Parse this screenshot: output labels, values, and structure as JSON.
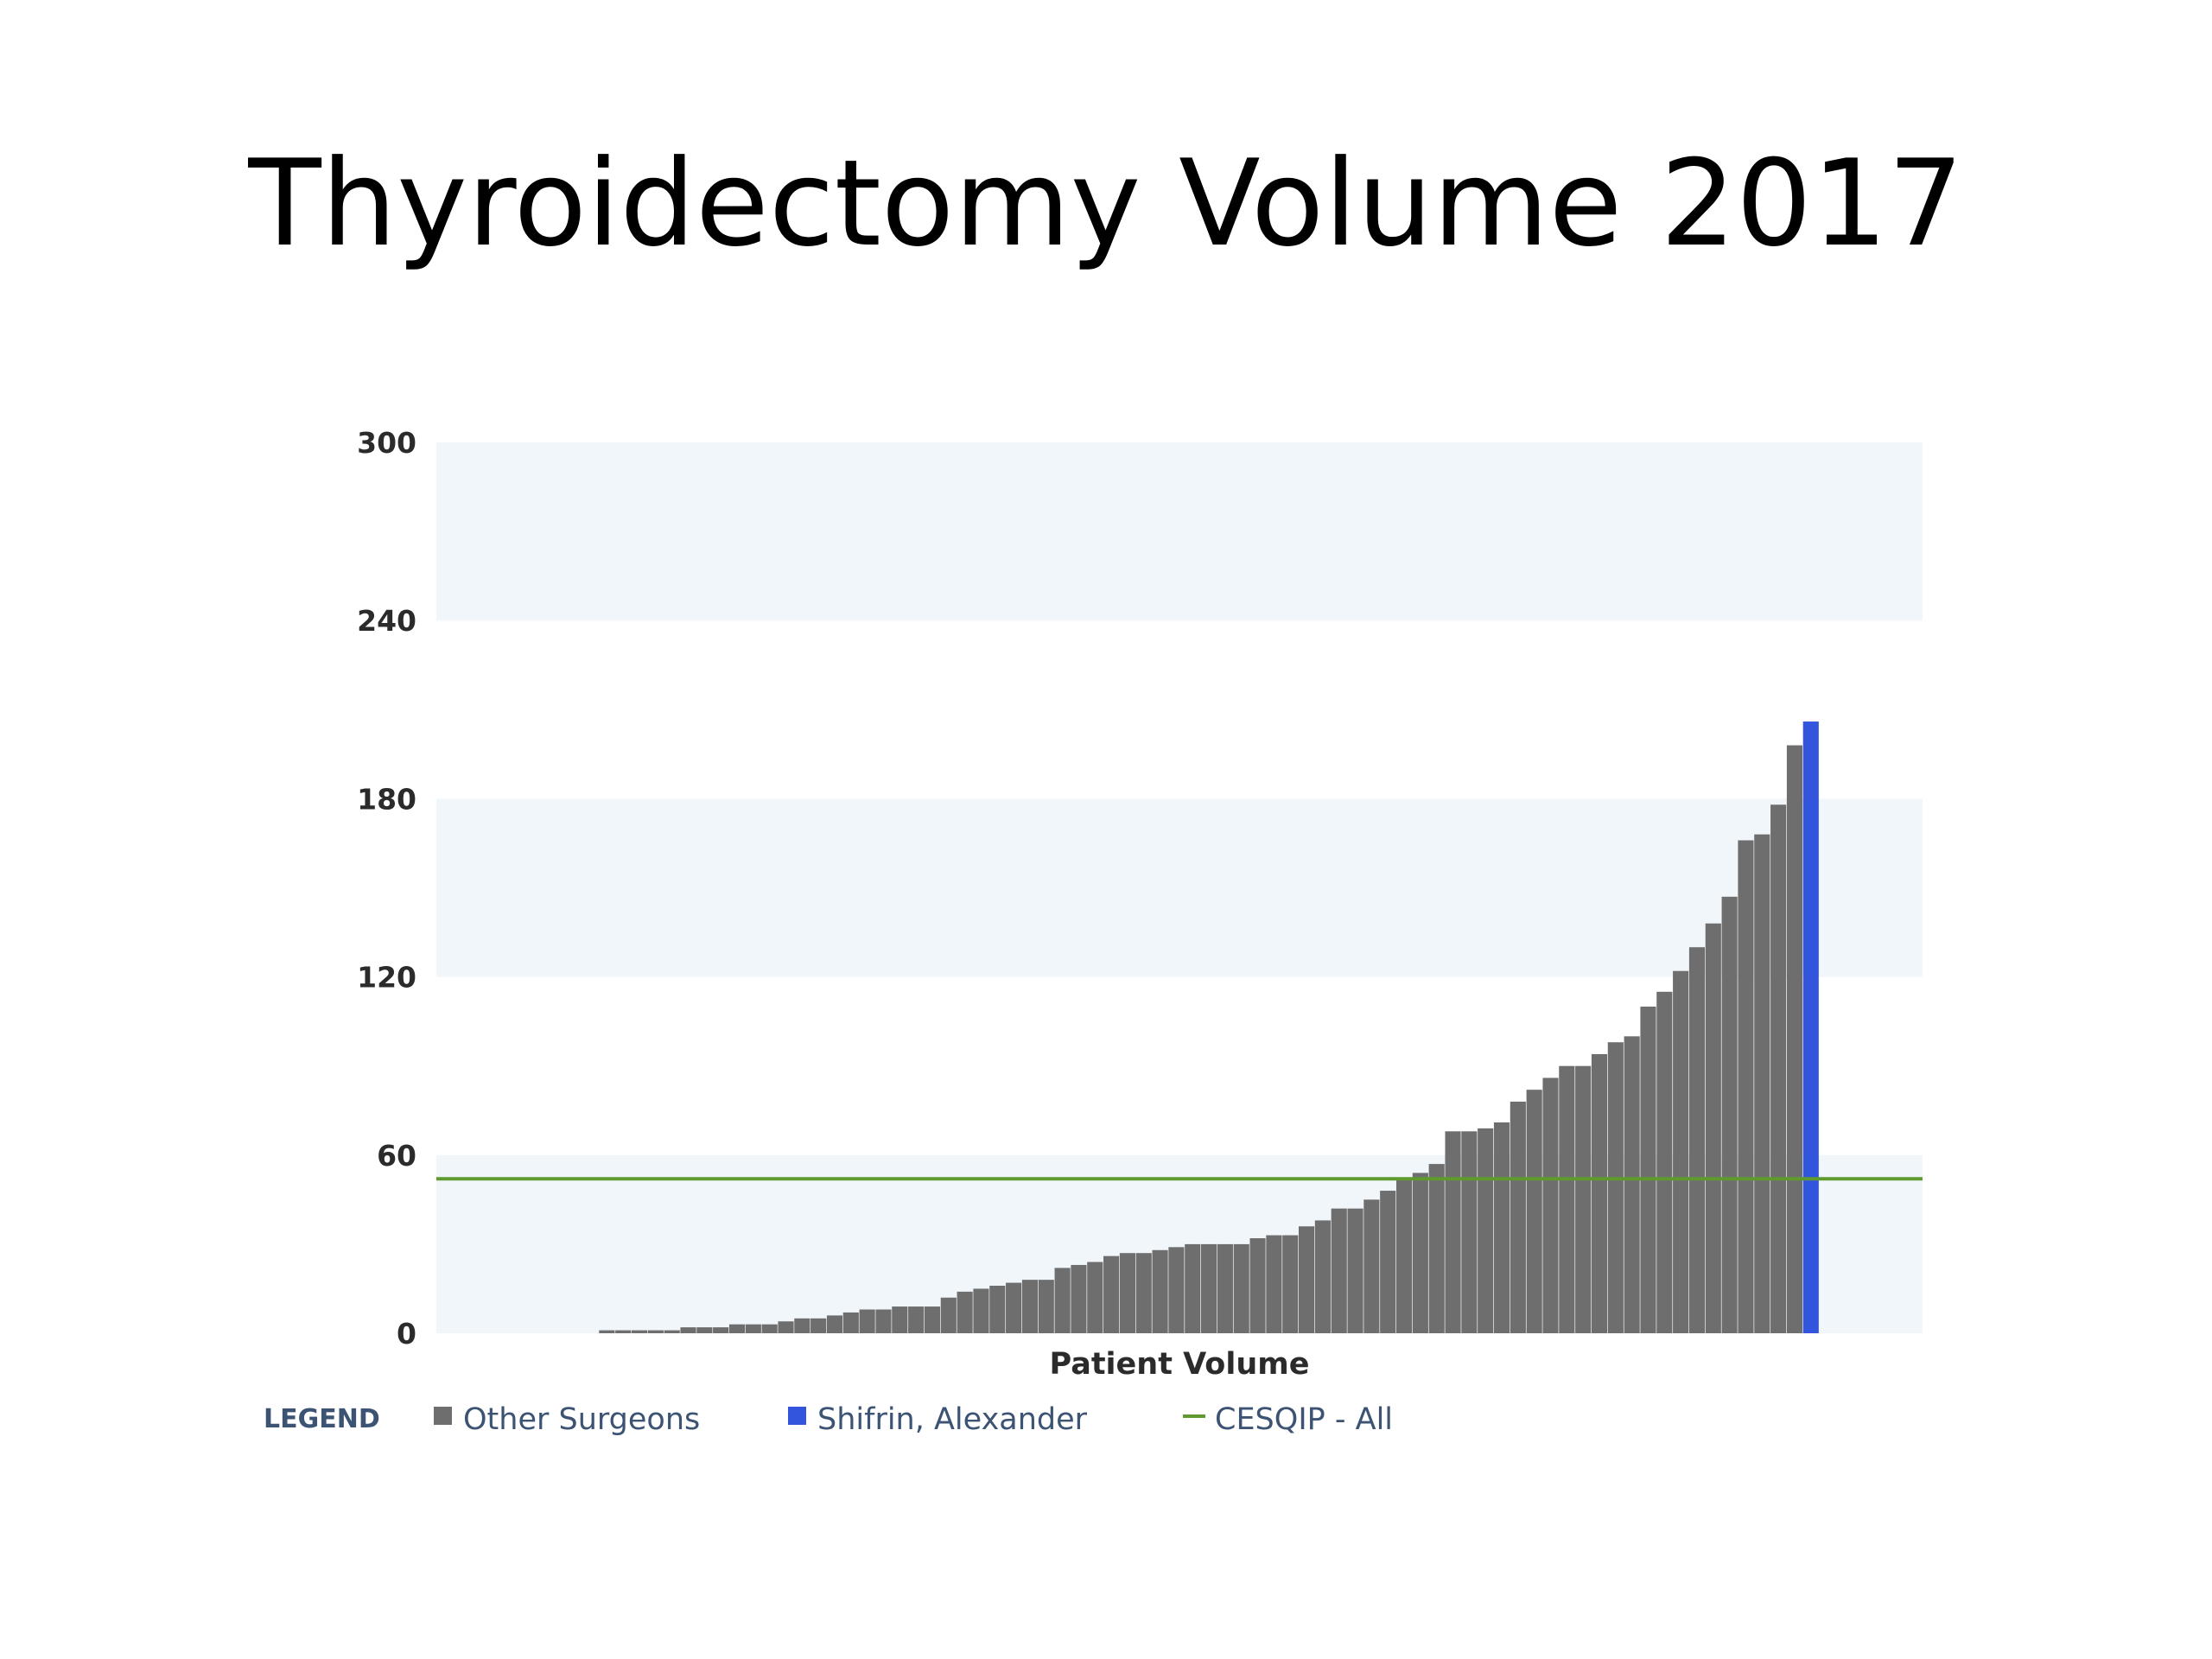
{
  "slide": {
    "title": "Thyroidectomy Volume 2017"
  },
  "colors": {
    "other": "#6e6e6e",
    "highlight": "#3355dd",
    "reference": "#5f9a2e",
    "band": "#f1f6fa",
    "text": "#2b2b2b",
    "legend_text": "#3c5373"
  },
  "chart_data": {
    "type": "bar",
    "xlabel": "Patient Volume",
    "ylabel": "",
    "ylim": [
      0,
      300
    ],
    "yticks": [
      0,
      60,
      120,
      180,
      240,
      300
    ],
    "grid": "alternating horizontal bands",
    "legend_placement": "bottom-left",
    "legend": {
      "heading": "LEGEND",
      "entries": [
        {
          "label": "Other Surgeons",
          "kind": "bar",
          "color": "#6e6e6e"
        },
        {
          "label": "Shifrin, Alexander",
          "kind": "bar",
          "color": "#3355dd"
        },
        {
          "label": "CESQIP - All",
          "kind": "line",
          "color": "#5f9a2e"
        }
      ]
    },
    "series": [
      {
        "label": "Other Surgeons",
        "values": [
          0,
          0,
          0,
          0,
          0,
          0,
          0,
          0,
          0,
          0,
          1,
          1,
          1,
          1,
          1,
          2,
          2,
          2,
          3,
          3,
          3,
          4,
          5,
          5,
          6,
          7,
          8,
          8,
          9,
          9,
          9,
          12,
          14,
          15,
          16,
          17,
          18,
          18,
          22,
          23,
          24,
          26,
          27,
          27,
          28,
          29,
          30,
          30,
          30,
          30,
          32,
          33,
          33,
          36,
          38,
          42,
          42,
          45,
          48,
          52,
          54,
          57,
          68,
          68,
          69,
          71,
          78,
          82,
          86,
          90,
          90,
          94,
          98,
          100,
          110,
          115,
          122,
          130,
          138,
          147,
          166,
          168,
          178,
          198
        ]
      },
      {
        "label": "Shifrin, Alexander",
        "values": [
          206
        ]
      }
    ],
    "reference_lines": [
      {
        "label": "CESQIP - All",
        "y": 52
      }
    ]
  }
}
